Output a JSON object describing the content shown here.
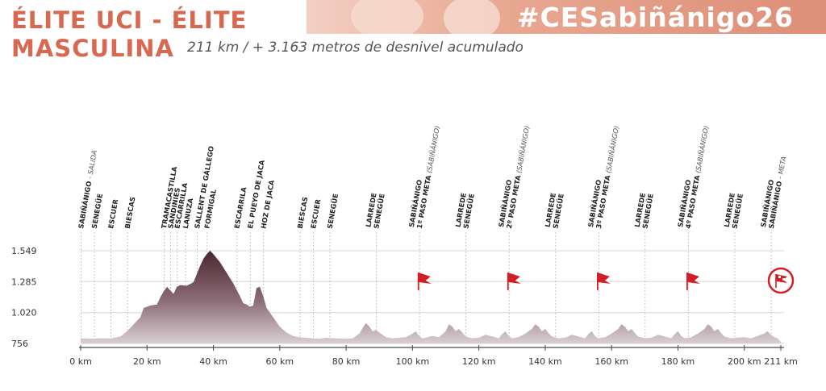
{
  "header": {
    "title_line1": "ÉLITE UCI - ÉLITE",
    "title_line2": "MASCULINA",
    "subtitle": "211 km / + 3.163 metros de desnivel acumulado",
    "hashtag": "#CESabiñánigo26"
  },
  "colors": {
    "accent": "#d8684f",
    "profile_top": "#4a2530",
    "profile_bottom": "#d9cfd3",
    "flag": "#d21f26"
  },
  "chart_data": {
    "type": "area",
    "title": "",
    "xlabel": "",
    "ylabel": "",
    "xlim": [
      0,
      211
    ],
    "ylim": [
      756,
      1549
    ],
    "x_ticks": [
      0,
      20,
      40,
      60,
      80,
      100,
      120,
      140,
      160,
      180,
      200,
      211
    ],
    "x_tick_labels": [
      "0 km",
      "20 km",
      "40 km",
      "60 km",
      "80 km",
      "100 km",
      "120 km",
      "140 km",
      "160 km",
      "180 km",
      "200 km",
      "211 km"
    ],
    "y_ticks": [
      756,
      1020,
      1285,
      1549
    ],
    "y_tick_labels": [
      "756",
      "1.020",
      "1.285",
      "1.549"
    ],
    "grid": true,
    "series": [
      {
        "x": [
          0,
          3,
          6,
          9,
          12,
          14,
          16,
          18,
          19,
          21,
          23,
          24,
          25,
          26,
          27,
          28,
          29,
          30,
          32,
          34,
          35,
          36,
          37,
          38,
          39,
          40,
          42,
          44,
          46,
          48,
          49,
          50,
          51,
          52,
          53,
          54,
          55,
          56,
          57,
          58,
          59,
          60,
          62,
          64,
          66,
          68,
          70,
          72,
          74,
          76,
          78,
          80,
          82,
          84,
          85,
          86,
          87,
          88,
          89,
          90,
          92,
          94,
          96,
          98,
          100,
          101,
          102,
          103,
          104,
          106,
          108,
          110,
          111,
          112,
          113,
          114,
          115,
          116,
          118,
          120,
          122,
          124,
          126,
          127,
          128,
          129,
          130,
          132,
          134,
          136,
          137,
          138,
          139,
          140,
          141,
          142,
          144,
          146,
          148,
          150,
          152,
          153,
          154,
          155,
          156,
          158,
          160,
          162,
          163,
          164,
          165,
          166,
          167,
          168,
          170,
          172,
          174,
          176,
          178,
          179,
          180,
          181,
          182,
          184,
          186,
          188,
          189,
          190,
          191,
          192,
          193,
          194,
          196,
          198,
          200,
          202,
          204,
          206,
          207,
          208,
          209,
          210,
          211
        ],
        "y": [
          800,
          795,
          800,
          798,
          815,
          860,
          920,
          980,
          1060,
          1080,
          1090,
          1150,
          1200,
          1240,
          1210,
          1180,
          1240,
          1255,
          1250,
          1280,
          1350,
          1420,
          1480,
          1520,
          1549,
          1520,
          1450,
          1360,
          1270,
          1160,
          1100,
          1090,
          1070,
          1080,
          1230,
          1240,
          1160,
          1060,
          1020,
          980,
          940,
          900,
          850,
          820,
          808,
          805,
          800,
          795,
          805,
          800,
          798,
          795,
          800,
          840,
          890,
          930,
          900,
          860,
          870,
          850,
          810,
          800,
          805,
          810,
          840,
          860,
          820,
          800,
          805,
          820,
          810,
          860,
          920,
          900,
          860,
          880,
          850,
          815,
          800,
          805,
          830,
          815,
          800,
          835,
          860,
          820,
          800,
          810,
          840,
          880,
          920,
          900,
          860,
          880,
          845,
          815,
          800,
          805,
          830,
          815,
          800,
          835,
          860,
          820,
          800,
          810,
          840,
          880,
          920,
          900,
          860,
          880,
          845,
          815,
          800,
          805,
          830,
          815,
          800,
          835,
          860,
          820,
          800,
          810,
          840,
          880,
          920,
          900,
          860,
          880,
          845,
          815,
          800,
          805,
          810,
          800,
          820,
          840,
          860,
          830,
          810,
          800,
          770
        ]
      }
    ]
  },
  "waypoints": [
    {
      "km": 0,
      "lines": [
        "SABIÑÁNIGO",
        "- SALIDA"
      ],
      "style": "split"
    },
    {
      "km": 4,
      "lines": [
        "SENEGÜE"
      ]
    },
    {
      "km": 9,
      "lines": [
        "ESCUER"
      ]
    },
    {
      "km": 14,
      "lines": [
        "BIESCAS"
      ]
    },
    {
      "km": 25,
      "lines": [
        "TRAMACASTILLA"
      ]
    },
    {
      "km": 27,
      "lines": [
        "SANDINIES"
      ]
    },
    {
      "km": 29,
      "lines": [
        "ESCARRILLA"
      ]
    },
    {
      "km": 31.5,
      "lines": [
        "LANUZA"
      ]
    },
    {
      "km": 35,
      "lines": [
        "SALLENT DE GÁLLEGO"
      ]
    },
    {
      "km": 38,
      "lines": [
        "FORMIGAL"
      ]
    },
    {
      "km": 47,
      "lines": [
        "ESCARRILA"
      ]
    },
    {
      "km": 51,
      "lines": [
        "EL PUEYO DE JACA"
      ]
    },
    {
      "km": 55,
      "lines": [
        "HOZ DE JACA"
      ]
    },
    {
      "km": 66,
      "lines": [
        "BIESCAS"
      ]
    },
    {
      "km": 70,
      "lines": [
        "ESCUER"
      ]
    },
    {
      "km": 75,
      "lines": [
        "SENEGÜE"
      ]
    },
    {
      "km": 89,
      "lines": [
        "LARREDE",
        "SENEGÜE"
      ],
      "style": "stack"
    },
    {
      "km": 102,
      "lines": [
        "SABIÑÁNIGO",
        "1º PASO META",
        "(SABIÑÁNIGO)"
      ],
      "style": "meta"
    },
    {
      "km": 116,
      "lines": [
        "LARREDE",
        "SENEGÜE"
      ],
      "style": "stack"
    },
    {
      "km": 129,
      "lines": [
        "SABIÑÁNIGO",
        "2º PASO META",
        "(SABIÑÁNIGO)"
      ],
      "style": "meta"
    },
    {
      "km": 143,
      "lines": [
        "LARREDE",
        "SENEGÜE"
      ],
      "style": "stack"
    },
    {
      "km": 156,
      "lines": [
        "SABIÑÁNIGO",
        "3º PASO META",
        "(SABIÑÁNIGO)"
      ],
      "style": "meta"
    },
    {
      "km": 170,
      "lines": [
        "LARREDE",
        "SENEGÜE"
      ],
      "style": "stack"
    },
    {
      "km": 183,
      "lines": [
        "SABIÑÁNIGO",
        "4º PASO META",
        "(SABIÑÁNIGO)"
      ],
      "style": "meta"
    },
    {
      "km": 197,
      "lines": [
        "LARREDE",
        "SENEGÜE"
      ],
      "style": "stack"
    },
    {
      "km": 208,
      "lines": [
        "SABIÑÁNIGO",
        "SABIÑÁNIGO",
        "- META"
      ],
      "style": "finish"
    }
  ],
  "flags": [
    {
      "km": 103,
      "type": "flag-icon"
    },
    {
      "km": 130,
      "type": "flag-icon"
    },
    {
      "km": 157,
      "type": "flag-icon"
    },
    {
      "km": 184,
      "type": "flag-icon"
    },
    {
      "km": 211,
      "type": "finish-flag-icon"
    }
  ]
}
